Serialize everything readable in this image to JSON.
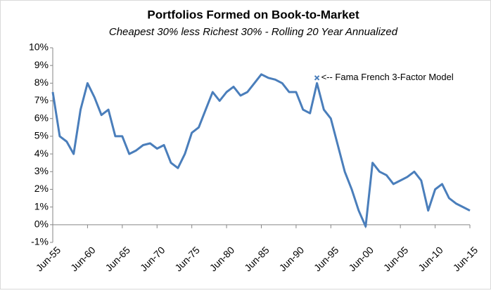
{
  "chart_data": {
    "type": "line",
    "title": "Portfolios Formed on Book-to-Market",
    "subtitle": "Cheapest 30% less Richest 30% - Rolling 20 Year Annualized",
    "categories": [
      "Jun-55",
      null,
      null,
      null,
      null,
      "Jun-60",
      null,
      null,
      null,
      null,
      "Jun-65",
      null,
      null,
      null,
      null,
      "Jun-70",
      null,
      null,
      null,
      null,
      "Jun-75",
      null,
      null,
      null,
      null,
      "Jun-80",
      null,
      null,
      null,
      null,
      "Jun-85",
      null,
      null,
      null,
      null,
      "Jun-90",
      null,
      null,
      null,
      null,
      "Jun-95",
      null,
      null,
      null,
      null,
      "Jun-00",
      null,
      null,
      null,
      null,
      "Jun-05",
      null,
      null,
      null,
      null,
      "Jun-10",
      null,
      null,
      null,
      null,
      "Jun-15"
    ],
    "series": [
      {
        "name": "Portfolios Formed on Book-to-Market",
        "color": "#4a7ebb",
        "values": [
          7.5,
          5.0,
          4.7,
          4.0,
          6.5,
          8.0,
          7.2,
          6.2,
          6.5,
          5.0,
          5.0,
          4.0,
          4.2,
          4.5,
          4.6,
          4.3,
          4.5,
          3.5,
          3.2,
          4.0,
          5.2,
          5.5,
          6.5,
          7.5,
          7.0,
          7.5,
          7.8,
          7.3,
          7.5,
          8.0,
          8.5,
          8.3,
          8.2,
          8.0,
          7.5,
          7.5,
          6.5,
          6.3,
          8.0,
          6.5,
          6.0,
          4.5,
          3.0,
          2.0,
          0.8,
          -0.1,
          3.5,
          3.0,
          2.8,
          2.3,
          2.5,
          2.7,
          3.0,
          2.5,
          0.8,
          2.0,
          2.3,
          1.5,
          1.2,
          1.0,
          0.8
        ]
      }
    ],
    "annotation": {
      "text": "<-- Fama French 3-Factor Model",
      "index": 38,
      "value": 8.3,
      "color": "#4a7ebb"
    },
    "ylim": [
      -1,
      10
    ],
    "yticks": [
      {
        "value": -1,
        "label": "-1%"
      },
      {
        "value": 0,
        "label": "0%"
      },
      {
        "value": 1,
        "label": "1%"
      },
      {
        "value": 2,
        "label": "2%"
      },
      {
        "value": 3,
        "label": "3%"
      },
      {
        "value": 4,
        "label": "4%"
      },
      {
        "value": 5,
        "label": "5%"
      },
      {
        "value": 6,
        "label": "6%"
      },
      {
        "value": 7,
        "label": "7%"
      },
      {
        "value": 8,
        "label": "8%"
      },
      {
        "value": 9,
        "label": "9%"
      },
      {
        "value": 10,
        "label": "10%"
      }
    ],
    "grid": false
  }
}
